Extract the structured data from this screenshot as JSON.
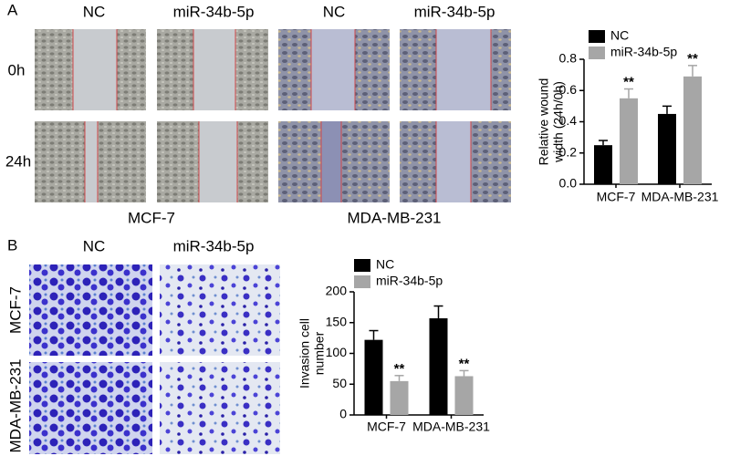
{
  "panels": {
    "a_label": "A",
    "b_label": "B",
    "a_columns": [
      "NC",
      "miR-34b-5p",
      "NC",
      "miR-34b-5p"
    ],
    "a_rows": [
      "0h",
      "24h"
    ],
    "a_cells": [
      "MCF-7",
      "MDA-MB-231"
    ],
    "b_columns": [
      "NC",
      "miR-34b-5p"
    ],
    "b_rows": [
      "MCF-7",
      "MDA-MB-231"
    ]
  },
  "chart_data": [
    {
      "type": "bar",
      "y_label": [
        "Relative wound",
        "width (24h/0h)"
      ],
      "categories": [
        "MCF-7",
        "MDA-MB-231"
      ],
      "series": [
        {
          "name": "NC",
          "color": "#000000",
          "values": [
            0.25,
            0.45
          ],
          "errors": [
            0.03,
            0.05
          ]
        },
        {
          "name": "miR-34b-5p",
          "color": "#a6a6a6",
          "values": [
            0.55,
            0.69
          ],
          "errors": [
            0.06,
            0.07
          ],
          "markers": [
            "**",
            "**"
          ]
        }
      ],
      "ylim": [
        0,
        0.8
      ],
      "yticks": [
        {
          "value": 0,
          "label": "0.0"
        },
        0.2,
        0.4,
        0.6,
        0.8
      ]
    },
    {
      "type": "bar",
      "y_label": [
        "Invasion cell",
        "number"
      ],
      "categories": [
        "MCF-7",
        "MDA-MB-231"
      ],
      "series": [
        {
          "name": "NC",
          "color": "#000000",
          "values": [
            122,
            157
          ],
          "errors": [
            15,
            20
          ]
        },
        {
          "name": "miR-34b-5p",
          "color": "#a6a6a6",
          "values": [
            55,
            63
          ],
          "errors": [
            9,
            9
          ],
          "markers": [
            "**",
            "**"
          ]
        }
      ],
      "ylim": [
        0,
        200
      ],
      "yticks": [
        0,
        50,
        100,
        150,
        200
      ]
    }
  ]
}
